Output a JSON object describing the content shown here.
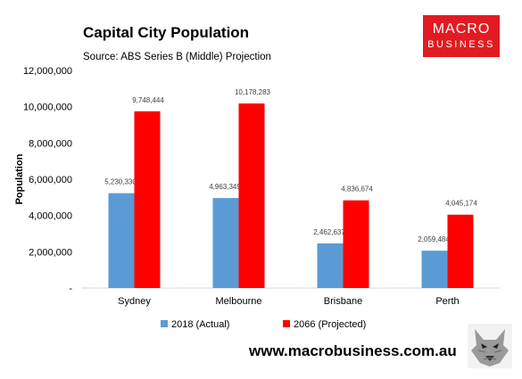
{
  "header": {
    "title": "Capital City Population",
    "subtitle": "Source: ABS Series B (Middle) Projection"
  },
  "logo": {
    "line1": "MACRO",
    "line2": "BUSINESS"
  },
  "footer": {
    "website": "www.macrobusiness.com.au"
  },
  "colors": {
    "actual": "#5b9bd5",
    "projected": "#ff0000",
    "brand": "#e21b22"
  },
  "chart_data": {
    "type": "bar",
    "title": "Capital City Population",
    "subtitle": "Source: ABS Series B (Middle) Projection",
    "xlabel": "",
    "ylabel": "Population",
    "ylim": [
      0,
      12000000
    ],
    "yticks": [
      0,
      2000000,
      4000000,
      6000000,
      8000000,
      10000000,
      12000000
    ],
    "ytick_labels": [
      "-",
      "2,000,000",
      "4,000,000",
      "6,000,000",
      "8,000,000",
      "10,000,000",
      "12,000,000"
    ],
    "categories": [
      "Sydney",
      "Melbourne",
      "Brisbane",
      "Perth"
    ],
    "series": [
      {
        "name": "2018 (Actual)",
        "color": "#5b9bd5",
        "values": [
          5230330,
          4963349,
          2462637,
          2059484
        ],
        "labels": [
          "5,230,330",
          "4,963,349",
          "2,462,637",
          "2,059,484"
        ]
      },
      {
        "name": "2066 (Projected)",
        "color": "#ff0000",
        "values": [
          9748444,
          10178283,
          4836674,
          4045174
        ],
        "labels": [
          "9,748,444",
          "10,178,283",
          "4,836,674",
          "4,045,174"
        ]
      }
    ],
    "legend": "bottom",
    "grid": false
  }
}
